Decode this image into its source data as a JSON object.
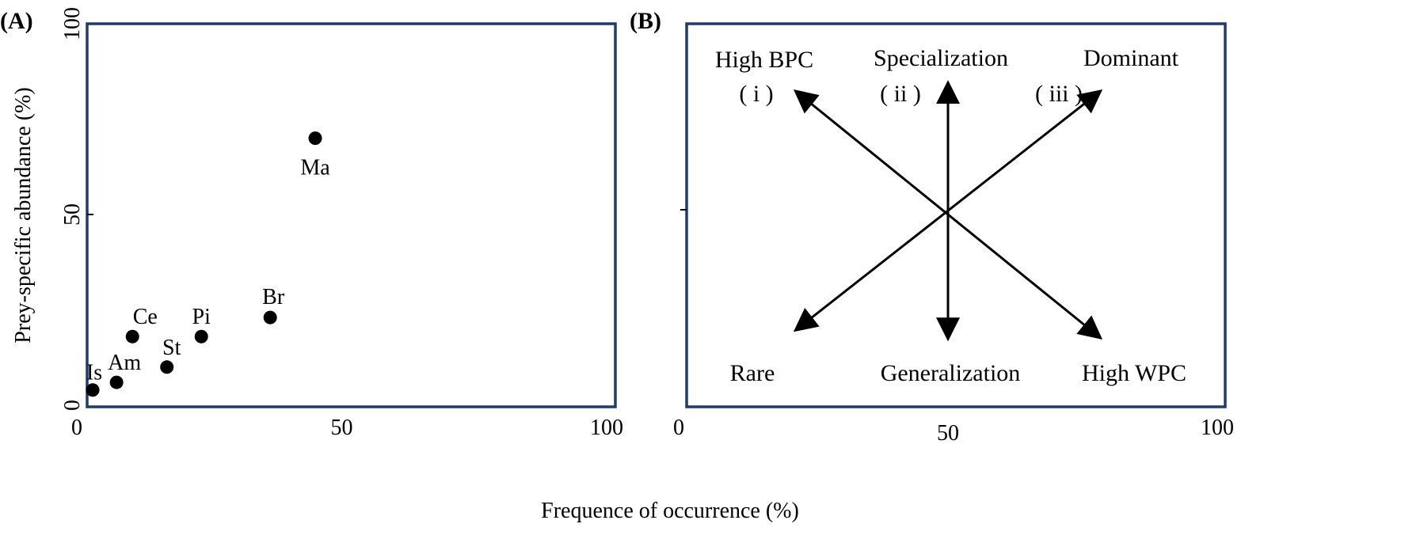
{
  "x_axis_label": "Frequence of occurrence (%)",
  "frame_color": "#1f3a6b",
  "chart_data": [
    {
      "type": "scatter",
      "panel_label": "(A)",
      "ylabel": "Prey-specific abundance (%)",
      "xlim": [
        0,
        100
      ],
      "ylim": [
        0,
        100
      ],
      "x_ticks": [
        0,
        50,
        100
      ],
      "y_ticks": [
        0,
        50,
        100
      ],
      "grid": false,
      "points": [
        {
          "label": "Is",
          "x": 3,
          "y": 4
        },
        {
          "label": "Am",
          "x": 7.5,
          "y": 6
        },
        {
          "label": "Ce",
          "x": 10.5,
          "y": 18
        },
        {
          "label": "St",
          "x": 17,
          "y": 10
        },
        {
          "label": "Pi",
          "x": 23.5,
          "y": 18
        },
        {
          "label": "Br",
          "x": 36.5,
          "y": 23
        },
        {
          "label": "Ma",
          "x": 45,
          "y": 70
        }
      ]
    },
    {
      "type": "diagram",
      "panel_label": "(B)",
      "xlim": [
        0,
        100
      ],
      "ylim": [
        0,
        100
      ],
      "x_ticks": [
        0,
        50,
        100
      ],
      "center": [
        50,
        50
      ],
      "arrows": [
        {
          "from": [
            22,
            20
          ],
          "to": [
            78,
            82
          ]
        },
        {
          "from": [
            50,
            18
          ],
          "to": [
            50,
            84
          ]
        },
        {
          "from": [
            78,
            18
          ],
          "to": [
            22,
            82
          ]
        }
      ],
      "labels": {
        "high_bpc": "High BPC",
        "specialization": "Specialization",
        "dominant": "Dominant",
        "i": "( i )",
        "ii": "( ii )",
        "iii": "( iii )",
        "rare": "Rare",
        "generalization": "Generalization",
        "high_wpc": "High WPC"
      }
    }
  ]
}
